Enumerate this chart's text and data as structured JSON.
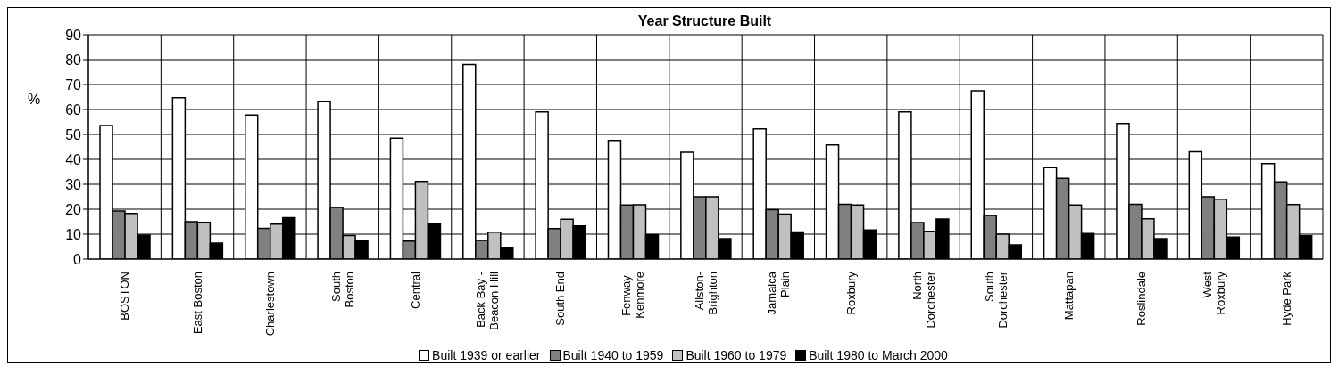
{
  "chart_data": {
    "type": "bar",
    "title": "Year Structure Built",
    "ylabel": "%",
    "categories": [
      "BOSTON",
      "East Boston",
      "Charlestown",
      "South\nBoston",
      "Central",
      "Back Bay -\nBeacon Hill",
      "South End",
      "Fenway-\nKenmore",
      "Allston-\nBrighton",
      "Jamaica\nPlain",
      "Roxbury",
      "North\nDorchester",
      "South\nDorchester",
      "Mattapan",
      "Roslindale",
      "West\nRoxbury",
      "Hyde Park"
    ],
    "series": [
      {
        "name": "Built 1939 or earlier",
        "color": "#ffffff",
        "values": [
          53.6,
          64.7,
          57.8,
          63.3,
          48.5,
          78,
          59,
          47.6,
          42.9,
          52.2,
          45.8,
          59,
          67.5,
          36.7,
          54.4,
          43,
          38.3
        ]
      },
      {
        "name": "Built 1940 to 1959",
        "color": "#808080",
        "values": [
          19.3,
          15,
          12.3,
          20.7,
          7.2,
          7.5,
          12.2,
          21.7,
          25,
          19.8,
          22,
          14.6,
          17.5,
          32.4,
          22,
          25,
          31
        ]
      },
      {
        "name": "Built 1960 to 1979",
        "color": "#c0c0c0",
        "values": [
          18.3,
          14.7,
          14,
          9.5,
          31.2,
          10.8,
          16,
          21.8,
          25,
          18,
          21.7,
          11.2,
          10,
          21.7,
          16.2,
          24,
          21.9
        ]
      },
      {
        "name": "Built 1980 to March 2000",
        "color": "#000000",
        "values": [
          9.6,
          6.4,
          16.6,
          7.4,
          14.1,
          4.7,
          13.3,
          9.8,
          8.2,
          10.9,
          11.7,
          16.1,
          5.7,
          10.3,
          8.2,
          8.8,
          9.4
        ]
      }
    ],
    "ylim": [
      0,
      90
    ],
    "yticks": [
      0,
      10,
      20,
      30,
      40,
      50,
      60,
      70,
      80,
      90
    ],
    "grid": true,
    "legend": "bottom"
  }
}
